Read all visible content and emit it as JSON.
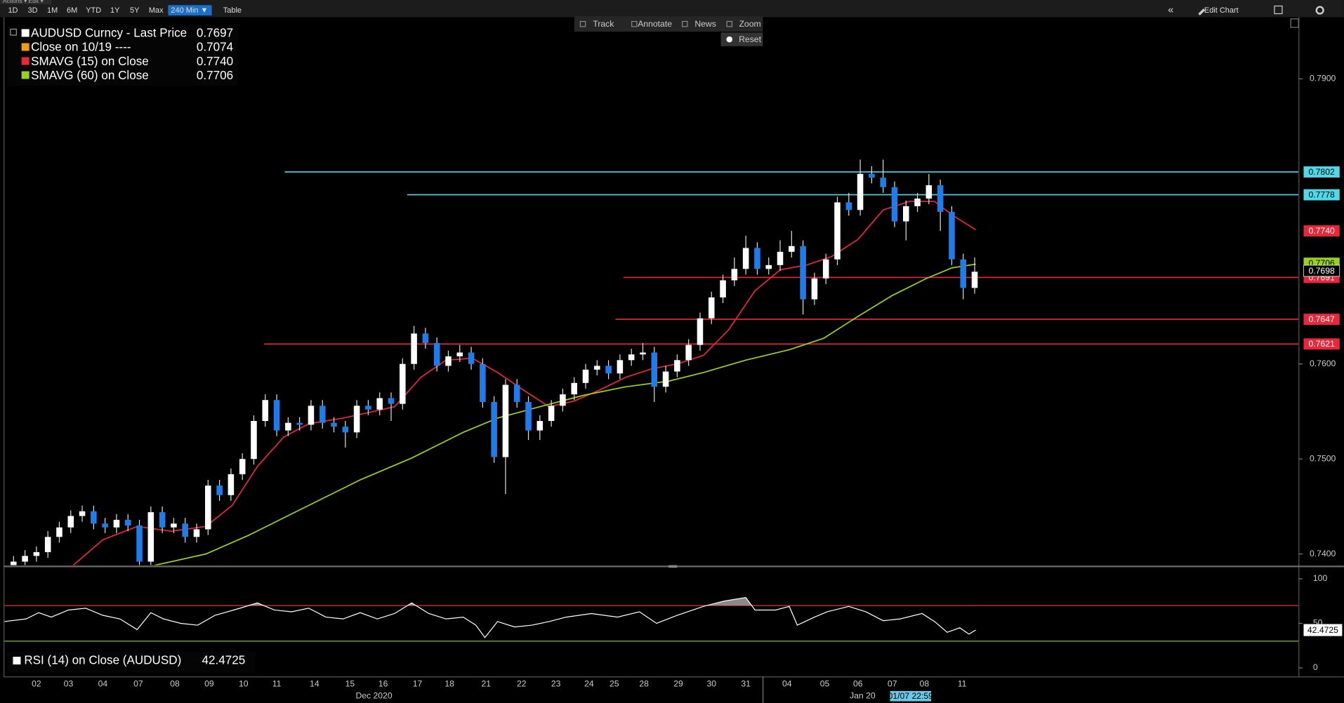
{
  "toolbar": {
    "menus": [
      "Actions ▾",
      "Edit ▾"
    ],
    "ranges": [
      "1D",
      "3D",
      "1M",
      "6M",
      "YTD",
      "1Y",
      "5Y",
      "Max",
      "240 Min ▼"
    ],
    "selected_range": 8,
    "table": "Table",
    "collapse": "«",
    "edit_chart": "Edit Chart",
    "tools": [
      "Track",
      "Annotate",
      "News",
      "Zoom"
    ],
    "reset": "Reset"
  },
  "chart_data": {
    "type": "candlestick",
    "legend": [
      {
        "label": "AUDUSD Curncy - Last Price",
        "value": "0.7697",
        "color": "#ffffff"
      },
      {
        "label": "Close on 10/19 ----",
        "value": "0.7074",
        "color": "#f39c12"
      },
      {
        "label": "SMAVG (15)  on Close",
        "value": "0.7740",
        "color": "#e8283a"
      },
      {
        "label": "SMAVG (60)  on Close",
        "value": "0.7706",
        "color": "#9ad21a"
      }
    ],
    "xlim": [
      -2.8,
      110.3
    ],
    "ylim": [
      0.73883,
      0.79649
    ],
    "yticks": [
      {
        "value": 0.79,
        "label": "0.7900"
      },
      {
        "value": 0.76,
        "label": "0.7600"
      },
      {
        "value": 0.75,
        "label": "0.7500"
      },
      {
        "value": 0.74,
        "label": "0.7400"
      }
    ],
    "xticks": [
      {
        "value": 0,
        "label": "02"
      },
      {
        "value": 2.8,
        "label": "03"
      },
      {
        "value": 5.8,
        "label": "04"
      },
      {
        "value": 8.9,
        "label": "07"
      },
      {
        "value": 12.1,
        "label": "08"
      },
      {
        "value": 15.1,
        "label": "09"
      },
      {
        "value": 18.1,
        "label": "10"
      },
      {
        "value": 21.0,
        "label": "11"
      },
      {
        "value": 24.3,
        "label": "14"
      },
      {
        "value": 27.4,
        "label": "15"
      },
      {
        "value": 30.3,
        "label": "16"
      },
      {
        "value": 33.3,
        "label": "17"
      },
      {
        "value": 36.1,
        "label": "18"
      },
      {
        "value": 39.3,
        "label": "21"
      },
      {
        "value": 42.4,
        "label": "22"
      },
      {
        "value": 45.4,
        "label": "23"
      },
      {
        "value": 48.3,
        "label": "24"
      },
      {
        "value": 50.5,
        "label": "25"
      },
      {
        "value": 53.1,
        "label": "28"
      },
      {
        "value": 56.1,
        "label": "29"
      },
      {
        "value": 59.0,
        "label": "30"
      },
      {
        "value": 62.0,
        "label": "31"
      },
      {
        "value": 65.6,
        "label": "04"
      },
      {
        "value": 68.9,
        "label": "05"
      },
      {
        "value": 71.8,
        "label": "06"
      },
      {
        "value": 74.8,
        "label": "07"
      },
      {
        "value": 77.6,
        "label": "08"
      },
      {
        "value": 80.9,
        "label": "11"
      }
    ],
    "month_labels": [
      {
        "value": 29.5,
        "label": "Dec 2020"
      },
      {
        "value": 72.2,
        "label": "Jan 20"
      }
    ],
    "year_break": 63.5,
    "crosshair": {
      "value": 76.4,
      "label": "01/07 22:59"
    },
    "up_color": "#ffffff",
    "down_color": "#1f7ce8",
    "x": [
      -2,
      -1,
      0,
      1,
      2,
      3,
      4,
      5,
      6,
      7,
      8,
      9,
      10,
      11,
      12,
      13,
      14,
      15,
      16,
      17,
      18,
      19,
      20,
      21,
      22,
      23,
      24,
      25,
      26,
      27,
      28,
      29,
      30,
      31,
      32,
      33,
      34,
      35,
      36,
      37,
      38,
      39,
      40,
      41,
      42,
      43,
      44,
      45,
      46,
      47,
      48,
      49,
      50,
      51,
      52,
      53,
      54,
      55,
      56,
      57,
      58,
      59,
      60,
      61,
      62,
      63,
      64,
      65,
      66,
      67,
      68,
      69,
      70,
      71,
      72,
      73,
      74,
      75,
      76,
      77,
      78,
      79,
      80,
      81,
      82
    ],
    "open": [
      0.7388,
      0.7392,
      0.7398,
      0.7402,
      0.7418,
      0.7428,
      0.744,
      0.7445,
      0.7432,
      0.7428,
      0.7436,
      0.743,
      0.7392,
      0.7444,
      0.7428,
      0.7432,
      0.7418,
      0.7426,
      0.7472,
      0.7462,
      0.7484,
      0.75,
      0.754,
      0.7562,
      0.753,
      0.7538,
      0.7536,
      0.7556,
      0.7538,
      0.7534,
      0.7528,
      0.7556,
      0.7552,
      0.7564,
      0.7558,
      0.76,
      0.7632,
      0.7622,
      0.7598,
      0.7608,
      0.7612,
      0.76,
      0.756,
      0.7502,
      0.7578,
      0.756,
      0.753,
      0.754,
      0.7556,
      0.7568,
      0.758,
      0.7594,
      0.7598,
      0.759,
      0.7604,
      0.761,
      0.7612,
      0.7576,
      0.7592,
      0.7604,
      0.762,
      0.7648,
      0.767,
      0.7688,
      0.77,
      0.7722,
      0.77,
      0.7704,
      0.7718,
      0.7724,
      0.7668,
      0.769,
      0.771,
      0.777,
      0.7762,
      0.78,
      0.7796,
      0.7786,
      0.775,
      0.7766,
      0.7774,
      0.7788,
      0.776,
      0.771,
      0.768
    ],
    "high": [
      0.7398,
      0.7404,
      0.7408,
      0.7424,
      0.7434,
      0.7446,
      0.7451,
      0.7451,
      0.7438,
      0.7442,
      0.7442,
      0.7436,
      0.745,
      0.745,
      0.7438,
      0.7438,
      0.7432,
      0.7478,
      0.7478,
      0.749,
      0.7506,
      0.7546,
      0.7568,
      0.7568,
      0.7544,
      0.7544,
      0.7562,
      0.7562,
      0.7544,
      0.754,
      0.7562,
      0.7562,
      0.757,
      0.757,
      0.7606,
      0.764,
      0.7638,
      0.7628,
      0.7614,
      0.762,
      0.7618,
      0.7606,
      0.7566,
      0.7584,
      0.7584,
      0.7566,
      0.7546,
      0.7562,
      0.7574,
      0.7586,
      0.76,
      0.7604,
      0.7604,
      0.761,
      0.7616,
      0.7622,
      0.7618,
      0.7598,
      0.761,
      0.7626,
      0.7654,
      0.7676,
      0.7694,
      0.7712,
      0.7735,
      0.7728,
      0.7712,
      0.773,
      0.774,
      0.773,
      0.7696,
      0.7716,
      0.7776,
      0.778,
      0.7815,
      0.7808,
      0.7815,
      0.7792,
      0.7772,
      0.778,
      0.78,
      0.7794,
      0.7766,
      0.7716,
      0.7712
    ],
    "low": [
      0.7382,
      0.7386,
      0.7392,
      0.7396,
      0.7412,
      0.7422,
      0.7434,
      0.7426,
      0.7422,
      0.7422,
      0.7424,
      0.7386,
      0.7386,
      0.7422,
      0.7422,
      0.7412,
      0.7412,
      0.742,
      0.7456,
      0.7456,
      0.7478,
      0.7494,
      0.7534,
      0.7524,
      0.7524,
      0.753,
      0.753,
      0.7532,
      0.7528,
      0.7512,
      0.7522,
      0.7546,
      0.7546,
      0.754,
      0.7552,
      0.7594,
      0.7616,
      0.7592,
      0.7592,
      0.7602,
      0.7594,
      0.7554,
      0.7496,
      0.7463,
      0.7554,
      0.752,
      0.752,
      0.7534,
      0.755,
      0.7562,
      0.7574,
      0.7588,
      0.7584,
      0.7584,
      0.7598,
      0.7604,
      0.756,
      0.757,
      0.7586,
      0.7598,
      0.7614,
      0.7642,
      0.7664,
      0.7682,
      0.7694,
      0.7694,
      0.7694,
      0.7698,
      0.7712,
      0.7652,
      0.7662,
      0.7684,
      0.7704,
      0.7756,
      0.7756,
      0.779,
      0.778,
      0.7744,
      0.773,
      0.776,
      0.7768,
      0.774,
      0.7704,
      0.7668,
      0.7674
    ],
    "close": [
      0.7392,
      0.7398,
      0.7402,
      0.7418,
      0.7428,
      0.744,
      0.7445,
      0.7432,
      0.7428,
      0.7436,
      0.743,
      0.7392,
      0.7444,
      0.7428,
      0.7432,
      0.7418,
      0.7426,
      0.7472,
      0.7462,
      0.7484,
      0.75,
      0.754,
      0.7562,
      0.753,
      0.7538,
      0.7536,
      0.7556,
      0.7538,
      0.7534,
      0.7528,
      0.7556,
      0.7552,
      0.7564,
      0.7558,
      0.76,
      0.7632,
      0.7622,
      0.7598,
      0.7608,
      0.7612,
      0.76,
      0.756,
      0.7502,
      0.7578,
      0.756,
      0.753,
      0.754,
      0.7556,
      0.7568,
      0.758,
      0.7594,
      0.7598,
      0.759,
      0.7604,
      0.761,
      0.7612,
      0.7576,
      0.7592,
      0.7604,
      0.762,
      0.7648,
      0.767,
      0.7688,
      0.77,
      0.7722,
      0.77,
      0.7704,
      0.7718,
      0.7724,
      0.7668,
      0.769,
      0.771,
      0.777,
      0.7762,
      0.78,
      0.7796,
      0.7786,
      0.775,
      0.7766,
      0.7774,
      0.7788,
      0.776,
      0.771,
      0.768,
      0.7697
    ],
    "lines": [
      {
        "color": "#e8283a",
        "x": [
          3.2,
          5.8,
          8.8,
          11.8,
          14.8,
          17.1,
          19.3,
          21.6,
          23.8,
          26.8,
          29.1,
          31.3,
          33.6,
          35.8,
          38.1,
          40.3,
          42.5,
          44.8,
          47.0,
          49.3,
          51.5,
          53.8,
          56.0,
          58.3,
          60.5,
          62.8,
          65.0,
          67.3,
          69.5,
          71.8,
          74.0,
          76.3,
          78.5,
          80.0,
          82.1
        ],
        "values": [
          0.7388,
          0.7415,
          0.7429,
          0.7424,
          0.7429,
          0.7451,
          0.7492,
          0.7523,
          0.7537,
          0.7543,
          0.7549,
          0.7555,
          0.7586,
          0.7604,
          0.7606,
          0.7591,
          0.7573,
          0.7555,
          0.7561,
          0.7573,
          0.7586,
          0.7595,
          0.76,
          0.7609,
          0.7636,
          0.7677,
          0.7699,
          0.7704,
          0.7713,
          0.7731,
          0.7762,
          0.7771,
          0.7771,
          0.7757,
          0.7741
        ]
      },
      {
        "color": "#9ad21a",
        "x": [
          10.3,
          14.8,
          18.6,
          21.6,
          24.6,
          28.3,
          32.8,
          37.3,
          40.3,
          44.0,
          47.8,
          51.5,
          55.3,
          58.3,
          62.0,
          65.8,
          68.8,
          71.8,
          74.8,
          77.8,
          80.0,
          82.1
        ],
        "values": [
          0.7388,
          0.74,
          0.742,
          0.7438,
          0.7456,
          0.7478,
          0.7501,
          0.7528,
          0.7543,
          0.7555,
          0.7567,
          0.7576,
          0.7582,
          0.7591,
          0.7604,
          0.7615,
          0.7627,
          0.765,
          0.7672,
          0.769,
          0.7701,
          0.7705
        ]
      }
    ],
    "levels": [
      {
        "value": 0.7802,
        "label": "0.7802",
        "x_start": 21.7,
        "color": "#4fd8e8"
      },
      {
        "value": 0.7778,
        "label": "0.7778",
        "x_start": 32.4,
        "color": "#4fd8e8"
      },
      {
        "value": 0.7691,
        "label": "0.7691",
        "x_start": 51.3,
        "color": "#e8283a"
      },
      {
        "value": 0.7647,
        "label": "0.7647",
        "x_start": 50.6,
        "color": "#e8283a"
      },
      {
        "value": 0.7621,
        "label": "0.7621",
        "x_start": 19.9,
        "color": "#e8283a"
      }
    ],
    "axis_labels": [
      {
        "value": 0.774,
        "label": "0.7740",
        "color": "#e8283a"
      },
      {
        "value": 0.7706,
        "label": "0.7706",
        "color": "#9ad21a"
      },
      {
        "value": 0.7698,
        "label": "0.7698",
        "color": "#000000"
      }
    ],
    "rsi": {
      "title": "RSI (14)  on Close (AUDUSD)",
      "last_label": "42.4725",
      "color": "#ffffff",
      "ylim": [
        -9.6,
        111.5
      ],
      "yticks": [
        100,
        50,
        0
      ],
      "upper": 70,
      "lower": 30,
      "upper_color": "#e8283a",
      "lower_color": "#6dc21a",
      "x": [
        -2.8,
        -0.9,
        0.2,
        1.3,
        2.8,
        4.3,
        5.8,
        7.3,
        8.8,
        10.0,
        11.1,
        12.6,
        14.1,
        15.6,
        17.8,
        19.3,
        20.8,
        22.3,
        23.8,
        25.3,
        26.8,
        28.3,
        29.8,
        31.3,
        32.8,
        34.3,
        35.8,
        37.3,
        38.4,
        39.2,
        40.3,
        41.8,
        43.3,
        44.8,
        46.3,
        48.5,
        50.8,
        52.7,
        54.2,
        56.0,
        58.3,
        60.1,
        62.0,
        62.8,
        64.6,
        65.8,
        66.5,
        68.0,
        69.1,
        71.0,
        72.5,
        74.0,
        75.5,
        77.4,
        78.5,
        79.6,
        80.7,
        81.5,
        82.1
      ],
      "values": [
        52,
        55,
        62,
        57,
        65,
        67,
        59,
        55,
        43,
        62,
        55,
        50,
        48,
        59,
        67,
        73,
        65,
        63,
        67,
        57,
        55,
        62,
        55,
        61,
        73,
        61,
        55,
        57,
        48,
        34,
        52,
        46,
        48,
        52,
        57,
        61,
        57,
        63,
        50,
        59,
        69,
        75,
        79,
        65,
        65,
        69,
        48,
        57,
        63,
        69,
        63,
        53,
        55,
        61,
        52,
        40,
        45,
        38,
        42.4725
      ]
    }
  }
}
